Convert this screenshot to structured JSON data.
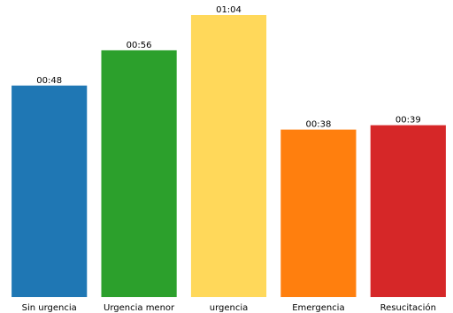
{
  "chart_data": {
    "type": "bar",
    "categories": [
      "Sin urgencia",
      "Urgencia menor",
      "urgencia",
      "Emergencia",
      "Resucitación"
    ],
    "values": [
      48,
      56,
      64,
      38,
      39
    ],
    "value_labels": [
      "00:48",
      "00:56",
      "01:04",
      "00:38",
      "00:39"
    ],
    "colors": [
      "#1f77b4",
      "#2ca02c",
      "#ffd85a",
      "#ff7f0e",
      "#d62728"
    ],
    "ylim": [
      0,
      64
    ],
    "grid": false,
    "legend": "none",
    "axis": "off"
  }
}
